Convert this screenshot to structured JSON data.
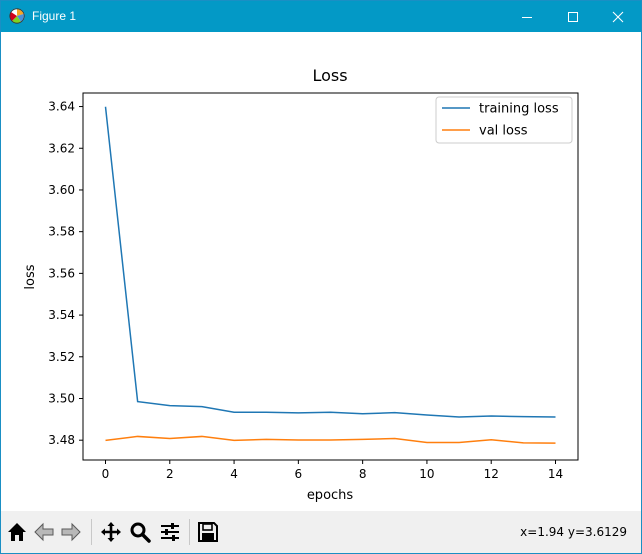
{
  "window": {
    "title": "Figure 1",
    "controls": {
      "minimize_icon": "minimize-icon",
      "maximize_icon": "maximize-icon",
      "close_icon": "close-icon"
    }
  },
  "toolbar": {
    "buttons": [
      "home-icon",
      "back-arrow-icon",
      "forward-arrow-icon",
      "pan-move-icon",
      "zoom-magnifier-icon",
      "configure-subplots-icon",
      "save-floppy-icon"
    ],
    "coords_text": "x=1.94 y=3.6129"
  },
  "chart_data": {
    "type": "line",
    "title": "Loss",
    "xlabel": "epochs",
    "ylabel": "loss",
    "xlim": [
      -0.7,
      14.7
    ],
    "ylim": [
      3.4705,
      3.6465
    ],
    "xticks": [
      0,
      2,
      4,
      6,
      8,
      10,
      12,
      14
    ],
    "xtick_labels": [
      "0",
      "2",
      "4",
      "6",
      "8",
      "10",
      "12",
      "14"
    ],
    "yticks": [
      3.48,
      3.5,
      3.52,
      3.54,
      3.56,
      3.58,
      3.6,
      3.62,
      3.64
    ],
    "ytick_labels": [
      "3.48",
      "3.50",
      "3.52",
      "3.54",
      "3.56",
      "3.58",
      "3.60",
      "3.62",
      "3.64"
    ],
    "grid": false,
    "legend_position": "top-right",
    "x": [
      0,
      1,
      2,
      3,
      4,
      5,
      6,
      7,
      8,
      9,
      10,
      11,
      12,
      13,
      14
    ],
    "series": [
      {
        "name": "training loss",
        "color": "#1f77b4",
        "values": [
          3.6399,
          3.4985,
          3.4966,
          3.4961,
          3.4934,
          3.4934,
          3.4931,
          3.4934,
          3.4927,
          3.4932,
          3.4921,
          3.4911,
          3.4916,
          3.4913,
          3.4911
        ]
      },
      {
        "name": "val loss",
        "color": "#ff7f0e",
        "values": [
          3.4799,
          3.4818,
          3.4808,
          3.4818,
          3.4799,
          3.4804,
          3.4801,
          3.4801,
          3.4804,
          3.4808,
          3.4789,
          3.4789,
          3.4802,
          3.4787,
          3.4786
        ]
      }
    ]
  }
}
